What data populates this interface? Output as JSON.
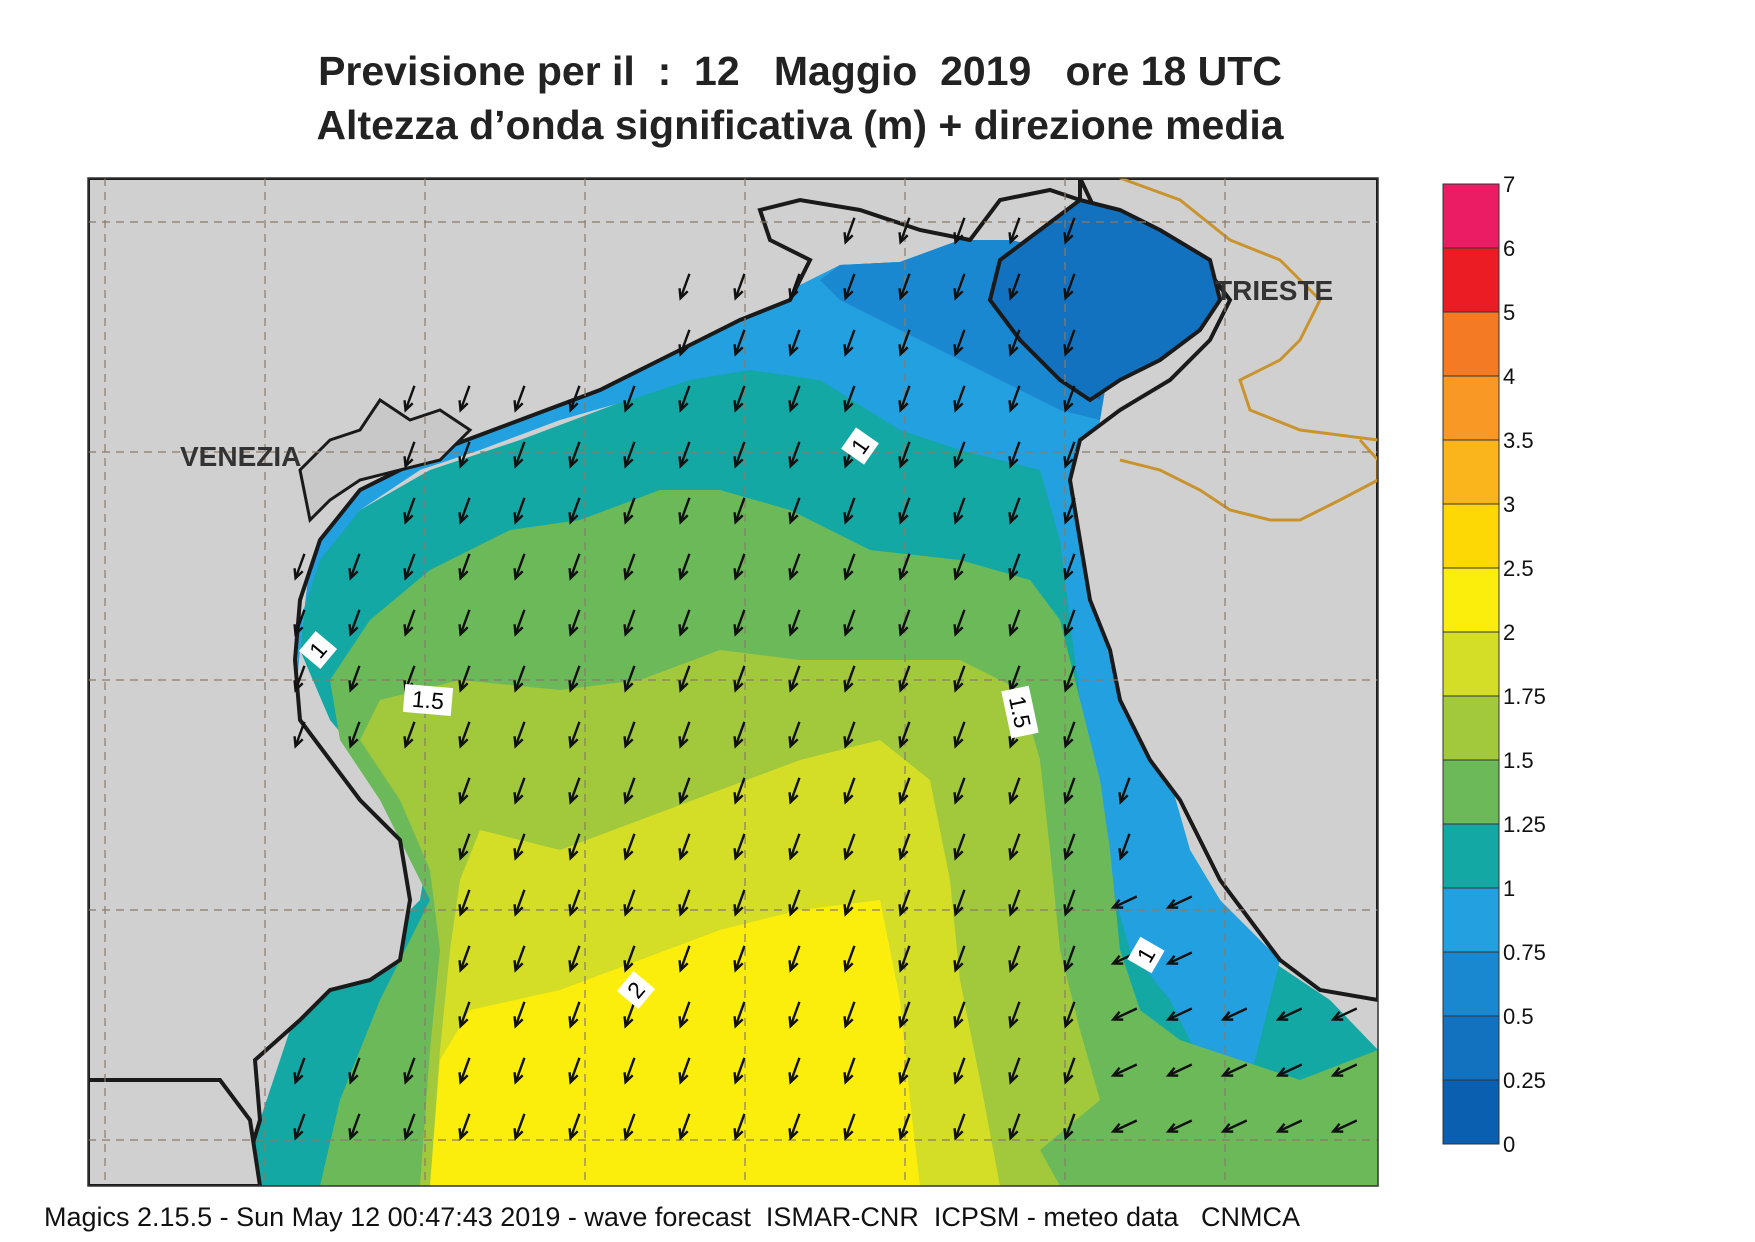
{
  "title": {
    "line1": "Previsione per il  :  12   Maggio  2019   ore 18 UTC",
    "line2": "Altezza d’onda significativa (m) + direzione media"
  },
  "cities": {
    "venezia": "VENEZIA",
    "trieste": "TRIESTE"
  },
  "contour_labels": [
    "1",
    "1",
    "1",
    "1.5",
    "1.5",
    "2"
  ],
  "colorbar": {
    "labels": [
      "0",
      "0.25",
      "0.5",
      "0.75",
      "1",
      "1.25",
      "1.5",
      "1.75",
      "2",
      "2.5",
      "3",
      "3.5",
      "4",
      "5",
      "6",
      "7"
    ],
    "colors": [
      "#0a5fb0",
      "#1272c0",
      "#1a88d0",
      "#22a0e0",
      "#14a8a5",
      "#6cb95a",
      "#a2c83c",
      "#d4de26",
      "#fcee0c",
      "#fed804",
      "#fab51c",
      "#f99824",
      "#f57a24",
      "#ec1c24",
      "#ec1c64"
    ]
  },
  "colors": {
    "land": "#d0d0d0",
    "coast": "#1a1a1a",
    "border": "#c9932e",
    "grid": "#8a7a6a",
    "arrow": "#111111"
  },
  "arrow_direction": "south-southwest",
  "footer": "Magics 2.15.5 - Sun May 12 00:47:43 2019 - wave forecast  ISMAR-CNR  ICPSM - meteo data   CNMCA"
}
